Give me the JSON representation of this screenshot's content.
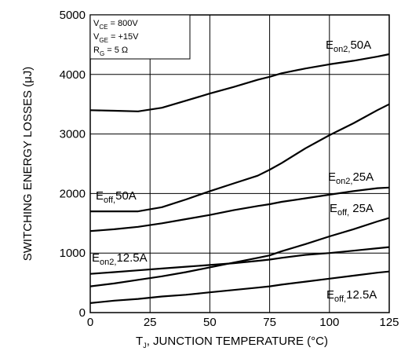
{
  "chart_data": {
    "type": "line",
    "xlabel": "T , JUNCTION TEMPERATURE (°C)",
    "xlabel_sub": "J",
    "ylabel": "SWITCHING ENERGY LOSSES (μJ)",
    "xlim": [
      0,
      125
    ],
    "ylim": [
      0,
      5000
    ],
    "x_ticks": [
      0,
      25,
      50,
      75,
      100,
      125
    ],
    "y_ticks": [
      0,
      1000,
      2000,
      3000,
      4000,
      5000
    ],
    "grid": true,
    "conditions": [
      {
        "main": "V",
        "sub": "CE",
        "rest": " =  800V"
      },
      {
        "main": "V",
        "sub": "GE",
        "rest": " =  +15V"
      },
      {
        "main": "R",
        "sub": "G",
        "rest": " = 5 Ω"
      }
    ],
    "series": [
      {
        "id": "eon2-50",
        "main": "E",
        "sub": "on2,",
        "rest": "50A",
        "points": [
          [
            0,
            3400
          ],
          [
            10,
            3390
          ],
          [
            20,
            3380
          ],
          [
            30,
            3440
          ],
          [
            40,
            3560
          ],
          [
            50,
            3680
          ],
          [
            60,
            3790
          ],
          [
            70,
            3910
          ],
          [
            75,
            3960
          ],
          [
            80,
            4020
          ],
          [
            90,
            4100
          ],
          [
            100,
            4170
          ],
          [
            110,
            4230
          ],
          [
            120,
            4300
          ],
          [
            125,
            4340
          ]
        ]
      },
      {
        "id": "eoff-50",
        "main": "E",
        "sub": "off,",
        "rest": "50A",
        "points": [
          [
            0,
            1700
          ],
          [
            10,
            1700
          ],
          [
            20,
            1700
          ],
          [
            30,
            1770
          ],
          [
            40,
            1900
          ],
          [
            50,
            2040
          ],
          [
            60,
            2170
          ],
          [
            70,
            2300
          ],
          [
            75,
            2400
          ],
          [
            80,
            2510
          ],
          [
            90,
            2760
          ],
          [
            100,
            2980
          ],
          [
            110,
            3180
          ],
          [
            120,
            3400
          ],
          [
            125,
            3500
          ]
        ]
      },
      {
        "id": "eon2-25",
        "main": "E",
        "sub": "on2,",
        "rest": "25A",
        "points": [
          [
            0,
            1370
          ],
          [
            10,
            1400
          ],
          [
            20,
            1440
          ],
          [
            30,
            1500
          ],
          [
            40,
            1570
          ],
          [
            50,
            1640
          ],
          [
            60,
            1720
          ],
          [
            70,
            1790
          ],
          [
            75,
            1820
          ],
          [
            80,
            1860
          ],
          [
            90,
            1920
          ],
          [
            100,
            1980
          ],
          [
            110,
            2040
          ],
          [
            120,
            2090
          ],
          [
            125,
            2100
          ]
        ]
      },
      {
        "id": "eoff-25",
        "main": "E",
        "sub": "off,",
        "rest": " 25A",
        "points": [
          [
            0,
            440
          ],
          [
            10,
            490
          ],
          [
            20,
            550
          ],
          [
            30,
            610
          ],
          [
            40,
            680
          ],
          [
            50,
            760
          ],
          [
            60,
            840
          ],
          [
            70,
            920
          ],
          [
            75,
            960
          ],
          [
            80,
            1030
          ],
          [
            90,
            1150
          ],
          [
            100,
            1280
          ],
          [
            110,
            1400
          ],
          [
            120,
            1530
          ],
          [
            125,
            1590
          ]
        ]
      },
      {
        "id": "eon2-12",
        "main": "E",
        "sub": "on2,",
        "rest": "12.5A",
        "points": [
          [
            0,
            650
          ],
          [
            10,
            680
          ],
          [
            20,
            710
          ],
          [
            30,
            740
          ],
          [
            40,
            770
          ],
          [
            50,
            800
          ],
          [
            60,
            830
          ],
          [
            70,
            870
          ],
          [
            75,
            890
          ],
          [
            80,
            920
          ],
          [
            90,
            970
          ],
          [
            100,
            1000
          ],
          [
            110,
            1040
          ],
          [
            120,
            1080
          ],
          [
            125,
            1100
          ]
        ]
      },
      {
        "id": "eoff-12",
        "main": "E",
        "sub": "off,",
        "rest": "12.5A",
        "points": [
          [
            0,
            160
          ],
          [
            10,
            200
          ],
          [
            20,
            230
          ],
          [
            30,
            270
          ],
          [
            40,
            300
          ],
          [
            50,
            340
          ],
          [
            60,
            380
          ],
          [
            70,
            420
          ],
          [
            75,
            440
          ],
          [
            80,
            470
          ],
          [
            90,
            520
          ],
          [
            100,
            570
          ],
          [
            110,
            620
          ],
          [
            120,
            670
          ],
          [
            125,
            690
          ]
        ]
      }
    ]
  }
}
